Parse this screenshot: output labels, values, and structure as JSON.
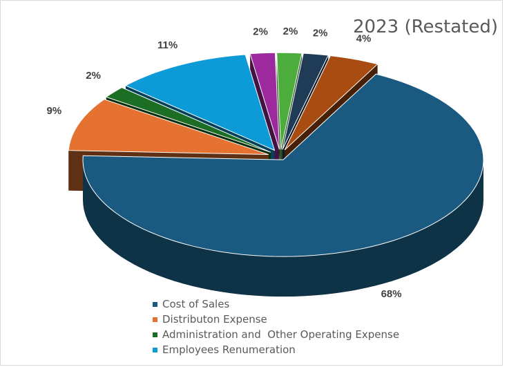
{
  "chart_data": {
    "type": "pie",
    "style": "3d-exploded",
    "title": "2023 (Restated)",
    "slices": [
      {
        "label": "",
        "value": 2,
        "value_label": "2%",
        "color": "#1f3b55"
      },
      {
        "label": "",
        "value": 4,
        "value_label": "4%",
        "color": "#a94c12"
      },
      {
        "label": "Cost of Sales",
        "value": 68,
        "value_label": "68%",
        "color": "#1a5a80"
      },
      {
        "label": "Distributon Expense",
        "value": 9,
        "value_label": "9%",
        "color": "#e57230"
      },
      {
        "label": "Administration and  Other Operating Expense",
        "value": 2,
        "value_label": "2%",
        "color": "#1c6e24"
      },
      {
        "label": "Employees Renumeration",
        "value": 11,
        "value_label": "11%",
        "color": "#0d9bd8"
      },
      {
        "label": "",
        "value": 2,
        "value_label": "2%",
        "color": "#9c2a9e"
      },
      {
        "label": "",
        "value": 2,
        "value_label": "2%",
        "color": "#4cad3c"
      }
    ],
    "legend": {
      "position": "bottom",
      "items": [
        {
          "label": "Cost of Sales",
          "color": "#1a5a80"
        },
        {
          "label": "Distributon Expense",
          "color": "#e57230"
        },
        {
          "label": "Administration and  Other Operating Expense",
          "color": "#1c6e24"
        },
        {
          "label": "Employees Renumeration",
          "color": "#0d9bd8"
        }
      ]
    }
  }
}
